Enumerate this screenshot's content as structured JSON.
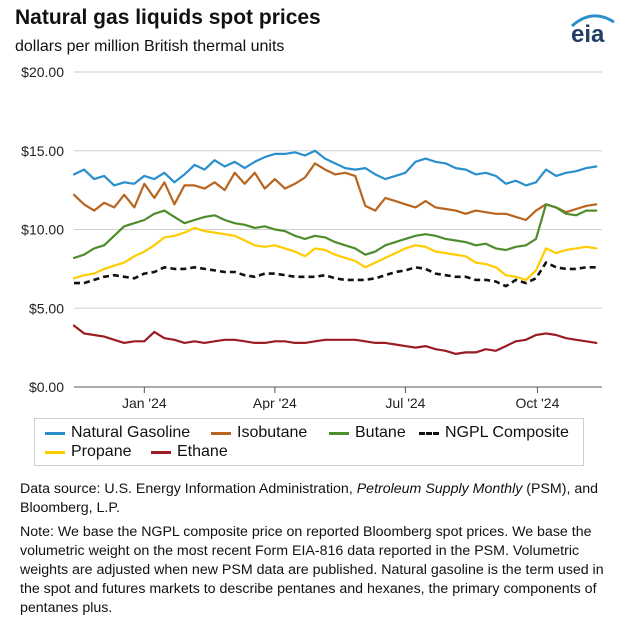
{
  "header": {
    "title": "Natural gas liquids spot prices",
    "subtitle": "dollars per million British thermal units",
    "logo_text": "eia"
  },
  "chart_data": {
    "type": "line",
    "title": "Natural gas liquids spot prices",
    "ylabel": "dollars per million British thermal units",
    "xlabel": "",
    "ylim": [
      0,
      20
    ],
    "yticks": [
      "$0.00",
      "$5.00",
      "$10.00",
      "$15.00",
      "$20.00"
    ],
    "ytick_values": [
      0,
      5,
      10,
      15,
      20
    ],
    "x_range": [
      "2023-11-13",
      "2024-11-15"
    ],
    "xticks": [
      "Jan '24",
      "Apr '24",
      "Jul '24",
      "Oct '24"
    ],
    "xtick_dates": [
      "2024-01-01",
      "2024-04-01",
      "2024-07-01",
      "2024-10-01"
    ],
    "grid": "horizontal",
    "x": [
      "2023-11-13",
      "2023-11-20",
      "2023-11-27",
      "2023-12-04",
      "2023-12-11",
      "2023-12-18",
      "2023-12-25",
      "2024-01-01",
      "2024-01-08",
      "2024-01-15",
      "2024-01-22",
      "2024-01-29",
      "2024-02-05",
      "2024-02-12",
      "2024-02-19",
      "2024-02-26",
      "2024-03-04",
      "2024-03-11",
      "2024-03-18",
      "2024-03-25",
      "2024-04-01",
      "2024-04-08",
      "2024-04-15",
      "2024-04-22",
      "2024-04-29",
      "2024-05-06",
      "2024-05-13",
      "2024-05-20",
      "2024-05-27",
      "2024-06-03",
      "2024-06-10",
      "2024-06-17",
      "2024-06-24",
      "2024-07-01",
      "2024-07-08",
      "2024-07-15",
      "2024-07-22",
      "2024-07-29",
      "2024-08-05",
      "2024-08-12",
      "2024-08-19",
      "2024-08-26",
      "2024-09-02",
      "2024-09-09",
      "2024-09-16",
      "2024-09-23",
      "2024-09-30",
      "2024-10-07",
      "2024-10-14",
      "2024-10-21",
      "2024-10-28",
      "2024-11-04",
      "2024-11-11"
    ],
    "series": [
      {
        "name": "Natural Gasoline",
        "color": "#2b8fce",
        "values": [
          13.5,
          13.8,
          13.2,
          13.4,
          12.8,
          13.0,
          12.9,
          13.4,
          13.2,
          13.6,
          13.0,
          13.5,
          14.1,
          13.8,
          14.4,
          14.0,
          14.3,
          13.9,
          14.3,
          14.6,
          14.8,
          14.8,
          14.9,
          14.7,
          15.0,
          14.5,
          14.2,
          13.9,
          13.8,
          13.9,
          13.5,
          13.2,
          13.4,
          13.6,
          14.3,
          14.5,
          14.3,
          14.2,
          13.9,
          13.8,
          13.5,
          13.6,
          13.4,
          12.9,
          13.1,
          12.8,
          13.0,
          13.8,
          13.4,
          13.6,
          13.7,
          13.9,
          14.0
        ]
      },
      {
        "name": "Isobutane",
        "color": "#b8651f",
        "values": [
          12.2,
          11.6,
          11.2,
          11.7,
          11.4,
          12.2,
          11.4,
          12.9,
          12.0,
          13.0,
          11.6,
          12.8,
          12.8,
          12.6,
          13.0,
          12.5,
          13.6,
          12.9,
          13.6,
          12.6,
          13.2,
          12.6,
          12.9,
          13.3,
          14.2,
          13.8,
          13.5,
          13.6,
          13.4,
          11.5,
          11.2,
          12.0,
          11.8,
          11.6,
          11.4,
          11.8,
          11.4,
          11.3,
          11.2,
          11.0,
          11.2,
          11.1,
          11.0,
          11.0,
          10.8,
          10.6,
          11.2,
          11.6,
          11.4,
          11.1,
          11.3,
          11.5,
          11.6
        ]
      },
      {
        "name": "Butane",
        "color": "#4e8d2c",
        "values": [
          8.2,
          8.4,
          8.8,
          9.0,
          9.6,
          10.2,
          10.4,
          10.6,
          11.0,
          11.2,
          10.8,
          10.4,
          10.6,
          10.8,
          10.9,
          10.6,
          10.4,
          10.3,
          10.1,
          10.2,
          10.0,
          9.9,
          9.6,
          9.4,
          9.6,
          9.5,
          9.2,
          9.0,
          8.8,
          8.4,
          8.6,
          9.0,
          9.2,
          9.4,
          9.6,
          9.7,
          9.6,
          9.4,
          9.3,
          9.2,
          9.0,
          9.1,
          8.8,
          8.7,
          8.9,
          9.0,
          9.4,
          11.6,
          11.4,
          11.0,
          10.9,
          11.2,
          11.2
        ]
      },
      {
        "name": "NGPL Composite",
        "color": "#111111",
        "dashed": true,
        "values": [
          6.6,
          6.6,
          6.8,
          7.0,
          7.1,
          7.0,
          6.9,
          7.2,
          7.3,
          7.6,
          7.5,
          7.5,
          7.6,
          7.5,
          7.4,
          7.3,
          7.3,
          7.1,
          7.0,
          7.2,
          7.2,
          7.1,
          7.0,
          7.0,
          7.0,
          7.1,
          6.9,
          6.8,
          6.8,
          6.8,
          6.9,
          7.1,
          7.3,
          7.4,
          7.6,
          7.5,
          7.2,
          7.1,
          7.0,
          7.0,
          6.8,
          6.8,
          6.7,
          6.4,
          6.8,
          6.6,
          6.9,
          7.9,
          7.6,
          7.5,
          7.5,
          7.6,
          7.6
        ]
      },
      {
        "name": "Propane",
        "color": "#ffcc00",
        "values": [
          6.9,
          7.1,
          7.2,
          7.5,
          7.7,
          7.9,
          8.3,
          8.6,
          9.0,
          9.5,
          9.6,
          9.8,
          10.1,
          9.9,
          9.8,
          9.7,
          9.6,
          9.3,
          9.0,
          8.9,
          9.0,
          8.8,
          8.6,
          8.3,
          8.8,
          8.7,
          8.4,
          8.2,
          8.0,
          7.6,
          7.9,
          8.2,
          8.5,
          8.8,
          9.0,
          8.9,
          8.6,
          8.5,
          8.4,
          8.3,
          7.9,
          7.8,
          7.6,
          7.1,
          7.0,
          6.8,
          7.4,
          8.8,
          8.5,
          8.7,
          8.8,
          8.9,
          8.8
        ]
      },
      {
        "name": "Ethane",
        "color": "#9b1c22",
        "values": [
          3.9,
          3.4,
          3.3,
          3.2,
          3.0,
          2.8,
          2.9,
          2.9,
          3.5,
          3.1,
          3.0,
          2.8,
          2.9,
          2.8,
          2.9,
          3.0,
          3.0,
          2.9,
          2.8,
          2.8,
          2.9,
          2.9,
          2.8,
          2.8,
          2.9,
          3.0,
          3.0,
          3.0,
          3.0,
          2.9,
          2.8,
          2.8,
          2.7,
          2.6,
          2.5,
          2.6,
          2.4,
          2.3,
          2.1,
          2.2,
          2.2,
          2.4,
          2.3,
          2.6,
          2.9,
          3.0,
          3.3,
          3.4,
          3.3,
          3.1,
          3.0,
          2.9,
          2.8
        ]
      }
    ],
    "legend": {
      "placement": "bottom",
      "entries": [
        "Natural Gasoline",
        "Isobutane",
        "Butane",
        "NGPL Composite",
        "Propane",
        "Ethane"
      ]
    }
  },
  "notes": {
    "source_prefix": "Data source: U.S. Energy Information Administration, ",
    "source_italic": "Petroleum Supply Monthly",
    "source_suffix": " (PSM), and Bloomberg, L.P.",
    "note": "Note: We base the NGPL composite price on reported Bloomberg spot prices. We base the volumetric weight on the most recent Form EIA-816 data reported in the PSM. Volumetric weights are adjusted when new PSM data are published. Natural gasoline is the term used in the spot and futures markets to describe pentanes and hexanes, the primary components of pentanes plus."
  },
  "colors": {
    "grid": "#cfcfcf",
    "axis": "#555555",
    "logo_blue": "#2b8fce",
    "logo_text": "#1f3f66"
  }
}
